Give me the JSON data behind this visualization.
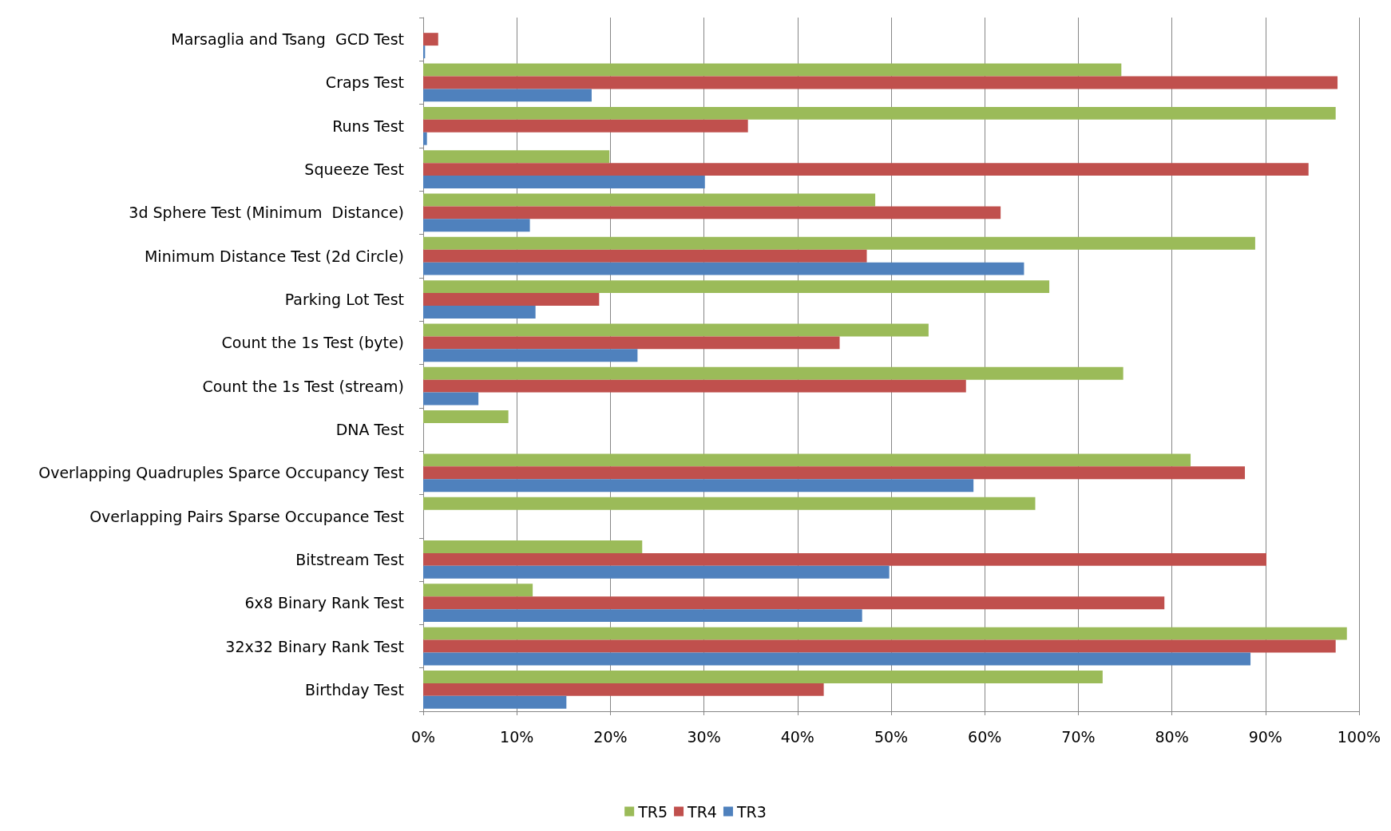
{
  "chart_data": {
    "type": "bar",
    "orientation": "horizontal",
    "categories": [
      "Marsaglia and Tsang  GCD Test",
      "Craps Test",
      "Runs Test",
      "Squeeze Test",
      "3d Sphere Test (Minimum  Distance)",
      "Minimum Distance Test (2d Circle)",
      "Parking Lot Test",
      "Count the 1s Test (byte)",
      "Count the 1s Test (stream)",
      "DNA Test",
      "Overlapping Quadruples Sparce Occupancy Test",
      "Overlapping Pairs Sparse Occupance Test",
      "Bitstream Test",
      "6x8 Binary Rank Test",
      "32x32 Binary Rank Test",
      "Birthday Test"
    ],
    "series": [
      {
        "name": "TR5",
        "color": "#9bbb59",
        "values": [
          0,
          74.6,
          97.5,
          19.9,
          48.3,
          88.9,
          66.9,
          54,
          74.8,
          9.1,
          82,
          65.4,
          23.4,
          11.7,
          98.7,
          72.6
        ]
      },
      {
        "name": "TR4",
        "color": "#c0504d",
        "values": [
          1.6,
          97.7,
          34.7,
          94.6,
          61.7,
          47.4,
          18.8,
          44.5,
          58,
          0,
          87.8,
          0,
          90.1,
          79.2,
          97.5,
          42.8
        ]
      },
      {
        "name": "TR3",
        "color": "#4f81bd",
        "values": [
          0.2,
          18,
          0.4,
          30.1,
          11.4,
          64.2,
          12,
          22.9,
          5.9,
          0,
          58.8,
          0,
          49.8,
          46.9,
          88.4,
          15.3
        ]
      }
    ],
    "xlim": [
      0,
      100
    ],
    "xticks": [
      {
        "value": 0,
        "label": "0%"
      },
      {
        "value": 10,
        "label": "10%"
      },
      {
        "value": 20,
        "label": "20%"
      },
      {
        "value": 30,
        "label": "30%"
      },
      {
        "value": 40,
        "label": "40%"
      },
      {
        "value": 50,
        "label": "50%"
      },
      {
        "value": 60,
        "label": "60%"
      },
      {
        "value": 70,
        "label": "70%"
      },
      {
        "value": 80,
        "label": "80%"
      },
      {
        "value": 90,
        "label": "90%"
      },
      {
        "value": 100,
        "label": "100%"
      }
    ],
    "grid": "x",
    "legend": "bottom"
  }
}
